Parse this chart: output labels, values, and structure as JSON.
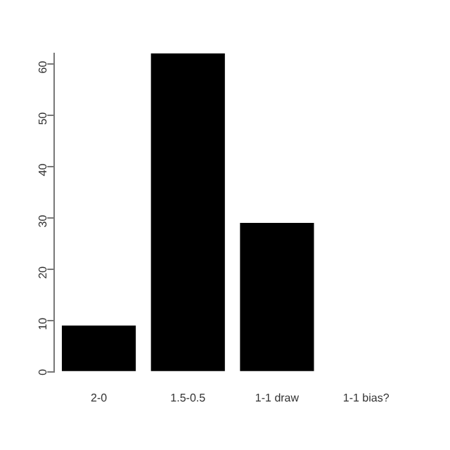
{
  "chart_data": {
    "type": "bar",
    "categories": [
      "2-0",
      "1.5-0.5",
      "1-1 draw",
      "1-1 bias?"
    ],
    "values": [
      9,
      62,
      29,
      0
    ],
    "color": "#000000",
    "ylim": [
      0,
      62
    ],
    "yticks": [
      0,
      10,
      20,
      30,
      40,
      50,
      60
    ],
    "grid": false,
    "legend": false
  }
}
